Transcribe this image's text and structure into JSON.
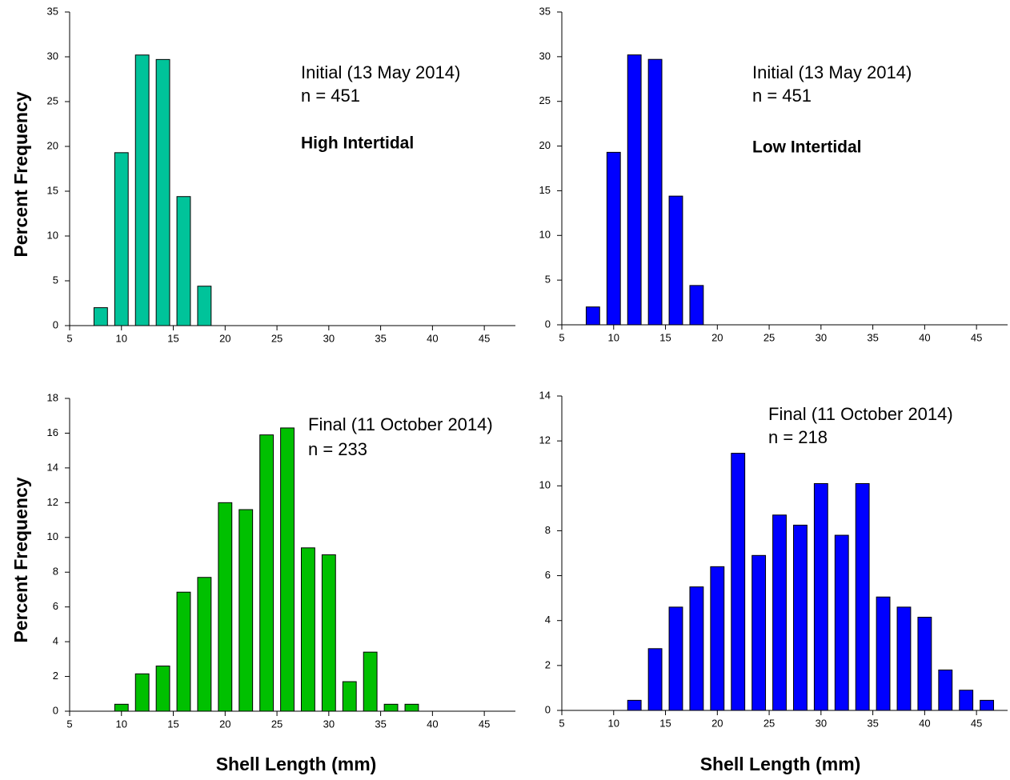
{
  "chart_data": [
    {
      "type": "bar",
      "annotations": [
        "Initial (13 May 2014)",
        "n = 451",
        "High Intertidal"
      ],
      "y_label": "Percent Frequency",
      "x": [
        8,
        10,
        12,
        14,
        16,
        18
      ],
      "values": [
        2.0,
        19.3,
        30.2,
        29.7,
        14.4,
        4.4
      ],
      "color": "#00c39a",
      "xlim": [
        5,
        48
      ],
      "xticks": [
        5,
        10,
        15,
        20,
        25,
        30,
        35,
        40,
        45
      ],
      "ylim": [
        0,
        35
      ],
      "yticks": [
        0,
        5,
        10,
        15,
        20,
        25,
        30,
        35
      ]
    },
    {
      "type": "bar",
      "annotations": [
        "Initial (13 May 2014)",
        "n = 451",
        "Low Intertidal"
      ],
      "x": [
        8,
        10,
        12,
        14,
        16,
        18
      ],
      "values": [
        2.0,
        19.3,
        30.2,
        29.7,
        14.4,
        4.4
      ],
      "color": "#0000ff",
      "xlim": [
        5,
        48
      ],
      "xticks": [
        5,
        10,
        15,
        20,
        25,
        30,
        35,
        40,
        45
      ],
      "ylim": [
        0,
        35
      ],
      "yticks": [
        0,
        5,
        10,
        15,
        20,
        25,
        30,
        35
      ]
    },
    {
      "type": "bar",
      "annotations": [
        "Final (11 October 2014)",
        "n = 233"
      ],
      "y_label": "Percent Frequency",
      "x_label": "Shell Length (mm)",
      "x": [
        10,
        12,
        14,
        16,
        18,
        20,
        22,
        24,
        26,
        28,
        30,
        32,
        34,
        36,
        38
      ],
      "values": [
        0.4,
        2.15,
        2.6,
        6.85,
        7.7,
        12.0,
        11.6,
        15.9,
        16.3,
        9.4,
        9.0,
        1.7,
        3.4,
        0.4,
        0.4
      ],
      "color": "#00c000",
      "xlim": [
        5,
        48
      ],
      "xticks": [
        5,
        10,
        15,
        20,
        25,
        30,
        35,
        40,
        45
      ],
      "ylim": [
        0,
        18
      ],
      "yticks": [
        0,
        2,
        4,
        6,
        8,
        10,
        12,
        14,
        16,
        18
      ]
    },
    {
      "type": "bar",
      "annotations": [
        "Final (11 October 2014)",
        "n = 218"
      ],
      "x_label": "Shell Length (mm)",
      "x": [
        12,
        14,
        16,
        18,
        20,
        22,
        24,
        26,
        28,
        30,
        32,
        34,
        36,
        38,
        40,
        42,
        44,
        46
      ],
      "values": [
        0.45,
        2.75,
        4.6,
        5.5,
        6.4,
        11.45,
        6.9,
        8.7,
        8.25,
        10.1,
        7.8,
        10.1,
        5.05,
        4.6,
        4.15,
        1.8,
        0.9,
        0.45
      ],
      "color": "#0000ff",
      "xlim": [
        5,
        48
      ],
      "xticks": [
        5,
        10,
        15,
        20,
        25,
        30,
        35,
        40,
        45
      ],
      "ylim": [
        0,
        14
      ],
      "yticks": [
        0,
        2,
        4,
        6,
        8,
        10,
        12,
        14
      ]
    }
  ]
}
